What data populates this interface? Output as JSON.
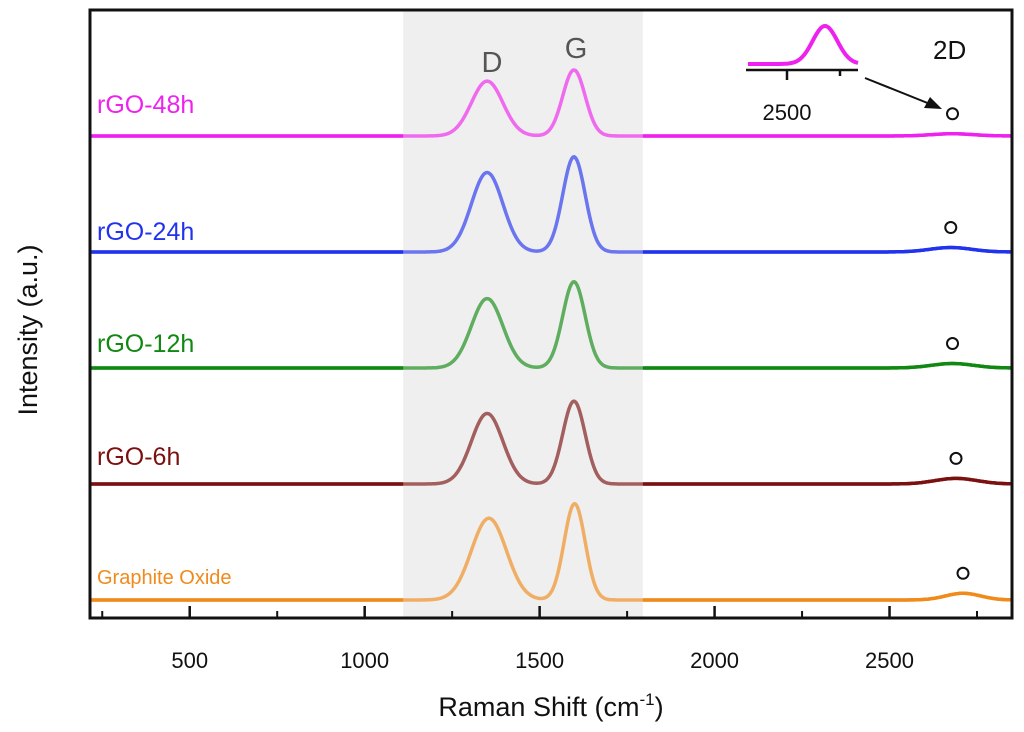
{
  "chart_data": {
    "type": "line",
    "title": "",
    "xlabel": "Raman Shift (cm",
    "xlabel_sup": "-1",
    "xlabel_close": ")",
    "ylabel": "Intensity (a.u.)",
    "xlim": [
      215,
      2850
    ],
    "xticks": [
      500,
      1000,
      1500,
      2000,
      2500
    ],
    "x_minor_ticks": [
      250,
      750,
      1250,
      1750,
      2250,
      2750
    ],
    "highlight_range": [
      1110,
      1795
    ],
    "peak_labels": {
      "D": "D",
      "G": "G",
      "2D": "2D"
    },
    "series": [
      {
        "name": "rGO-48h",
        "color": "#ee22ee",
        "baseline": 0.0,
        "d_pos": 1350,
        "d_height": 0.49,
        "d_width": 45,
        "g_pos": 1598,
        "g_height": 0.59,
        "g_width": 32,
        "twod_pos": 2680,
        "twod_height": 0.02,
        "twod_width": 60
      },
      {
        "name": "rGO-24h",
        "color": "#2233ee",
        "baseline": 1.0,
        "d_pos": 1350,
        "d_height": 0.71,
        "d_width": 45,
        "g_pos": 1598,
        "g_height": 0.85,
        "g_width": 32,
        "twod_pos": 2675,
        "twod_height": 0.04,
        "twod_width": 60
      },
      {
        "name": "rGO-12h",
        "color": "#118811",
        "baseline": 2.0,
        "d_pos": 1350,
        "d_height": 0.62,
        "d_width": 45,
        "g_pos": 1598,
        "g_height": 0.77,
        "g_width": 32,
        "twod_pos": 2680,
        "twod_height": 0.04,
        "twod_width": 60
      },
      {
        "name": "rGO-6h",
        "color": "#7a1010",
        "baseline": 3.0,
        "d_pos": 1350,
        "d_height": 0.63,
        "d_width": 45,
        "g_pos": 1598,
        "g_height": 0.74,
        "g_width": 32,
        "twod_pos": 2690,
        "twod_height": 0.05,
        "twod_width": 60
      },
      {
        "name": "Graphite Oxide",
        "color": "#f08a1a",
        "baseline": 4.0,
        "d_pos": 1355,
        "d_height": 0.73,
        "d_width": 50,
        "g_pos": 1600,
        "g_height": 0.86,
        "g_width": 30,
        "twod_pos": 2710,
        "twod_height": 0.06,
        "twod_width": 50
      }
    ],
    "inset": {
      "tick_label": "2500",
      "series_color": "#ee22ee",
      "xrange": [
        2400,
        2800
      ],
      "peak_pos": 2680,
      "ticks": [
        2500,
        2750
      ]
    }
  }
}
